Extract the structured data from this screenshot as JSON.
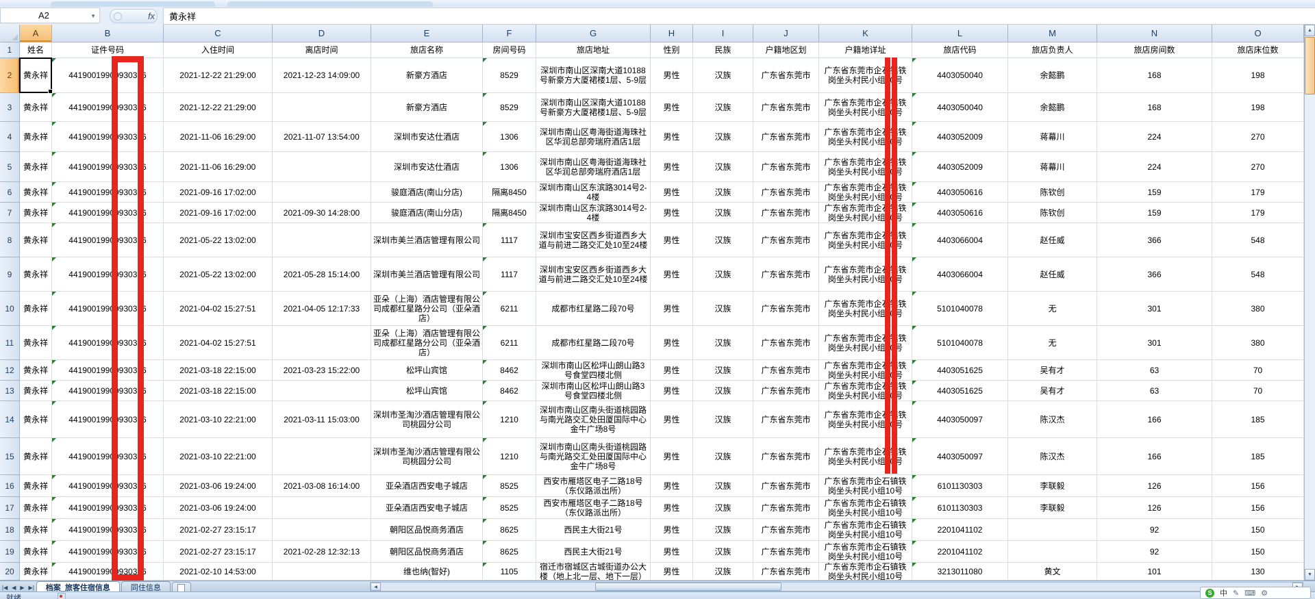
{
  "window": {
    "name_box": "A2",
    "formula_value": "黄永祥"
  },
  "icons": {
    "fx": "fx",
    "name_dropdown": "▼",
    "nav_first": "|◀",
    "nav_prev": "◀",
    "nav_next": "▶",
    "nav_last": "▶|",
    "scroll_up": "▲",
    "scroll_down": "▼",
    "scroll_left": "◀",
    "scroll_right": "▶",
    "ime_logo": "S",
    "ime_mode": "中",
    "ime_pen": "✎",
    "ime_keyboard": "⌨",
    "ime_settings": "⚙"
  },
  "sheet": {
    "header_row_number": "1",
    "selected_cell_ref": "A2",
    "columns": [
      {
        "letter": "A",
        "header": "姓名"
      },
      {
        "letter": "B",
        "header": "证件号码"
      },
      {
        "letter": "C",
        "header": "入住时间"
      },
      {
        "letter": "D",
        "header": "离店时间"
      },
      {
        "letter": "E",
        "header": "旅店名称"
      },
      {
        "letter": "F",
        "header": "房间号码"
      },
      {
        "letter": "G",
        "header": "旅店地址"
      },
      {
        "letter": "H",
        "header": "性别"
      },
      {
        "letter": "I",
        "header": "民族"
      },
      {
        "letter": "J",
        "header": "户籍地区划"
      },
      {
        "letter": "K",
        "header": "户籍地详址"
      },
      {
        "letter": "L",
        "header": "旅店代码"
      },
      {
        "letter": "M",
        "header": "旅店负责人"
      },
      {
        "letter": "N",
        "header": "旅店房间数"
      },
      {
        "letter": "O",
        "header": "旅店床位数"
      }
    ],
    "rows": [
      {
        "n": "2",
        "name": "黄永祥",
        "id_number": "44190019900930376",
        "check_in": "2021-12-22 21:29:00",
        "check_out": "2021-12-23 14:09:00",
        "hotel": "新豪方酒店",
        "room": "8529",
        "hotel_address": "深圳市南山区深南大道10188号新豪方大厦裙楼1层、5-9层",
        "gender": "男性",
        "ethnicity": "汉族",
        "region": "广东省东莞市",
        "home_address": "广东省东莞市企石镇铁岗坐头村民小组10号",
        "hotel_code": "4403050040",
        "manager": "余懿鹏",
        "room_count": "168",
        "bed_count": "198"
      },
      {
        "n": "3",
        "name": "黄永祥",
        "id_number": "44190019900930376",
        "check_in": "2021-12-22 21:29:00",
        "check_out": "",
        "hotel": "新豪方酒店",
        "room": "8529",
        "hotel_address": "深圳市南山区深南大道10188号新豪方大厦裙楼1层、5-9层",
        "gender": "男性",
        "ethnicity": "汉族",
        "region": "广东省东莞市",
        "home_address": "广东省东莞市企石镇铁岗坐头村民小组10号",
        "hotel_code": "4403050040",
        "manager": "余懿鹏",
        "room_count": "168",
        "bed_count": "198"
      },
      {
        "n": "4",
        "name": "黄永祥",
        "id_number": "44190019900930376",
        "check_in": "2021-11-06 16:29:00",
        "check_out": "2021-11-07 13:54:00",
        "hotel": "深圳市安达仕酒店",
        "room": "1306",
        "hotel_address": "深圳市南山区粤海街道海珠社区华润总部旁瑞府酒店1层",
        "gender": "男性",
        "ethnicity": "汉族",
        "region": "广东省东莞市",
        "home_address": "广东省东莞市企石镇铁岗坐头村民小组10号",
        "hotel_code": "4403052009",
        "manager": "蒋幕川",
        "room_count": "224",
        "bed_count": "270"
      },
      {
        "n": "5",
        "name": "黄永祥",
        "id_number": "44190019900930376",
        "check_in": "2021-11-06 16:29:00",
        "check_out": "",
        "hotel": "深圳市安达仕酒店",
        "room": "1306",
        "hotel_address": "深圳市南山区粤海街道海珠社区华润总部旁瑞府酒店1层",
        "gender": "男性",
        "ethnicity": "汉族",
        "region": "广东省东莞市",
        "home_address": "广东省东莞市企石镇铁岗坐头村民小组10号",
        "hotel_code": "4403052009",
        "manager": "蒋幕川",
        "room_count": "224",
        "bed_count": "270"
      },
      {
        "n": "6",
        "name": "黄永祥",
        "id_number": "44190019900930376",
        "check_in": "2021-09-16 17:02:00",
        "check_out": "",
        "hotel": "骏庭酒店(南山分店)",
        "room": "隔离8450",
        "hotel_address": "深圳市南山区东滨路3014号2-4楼",
        "gender": "男性",
        "ethnicity": "汉族",
        "region": "广东省东莞市",
        "home_address": "广东省东莞市企石镇铁岗坐头村民小组10号",
        "hotel_code": "4403050616",
        "manager": "陈钦创",
        "room_count": "159",
        "bed_count": "179"
      },
      {
        "n": "7",
        "name": "黄永祥",
        "id_number": "44190019900930376",
        "check_in": "2021-09-16 17:02:00",
        "check_out": "2021-09-30 14:28:00",
        "hotel": "骏庭酒店(南山分店)",
        "room": "隔离8450",
        "hotel_address": "深圳市南山区东滨路3014号2-4楼",
        "gender": "男性",
        "ethnicity": "汉族",
        "region": "广东省东莞市",
        "home_address": "广东省东莞市企石镇铁岗坐头村民小组10号",
        "hotel_code": "4403050616",
        "manager": "陈钦创",
        "room_count": "159",
        "bed_count": "179"
      },
      {
        "n": "8",
        "name": "黄永祥",
        "id_number": "44190019900930376",
        "check_in": "2021-05-22 13:02:00",
        "check_out": "",
        "hotel": "深圳市美兰酒店管理有限公司",
        "room": "1117",
        "hotel_address": "深圳市宝安区西乡街道西乡大道与前进二路交汇处10至24楼",
        "gender": "男性",
        "ethnicity": "汉族",
        "region": "广东省东莞市",
        "home_address": "广东省东莞市企石镇铁岗坐头村民小组10号",
        "hotel_code": "4403066004",
        "manager": "赵任威",
        "room_count": "366",
        "bed_count": "548"
      },
      {
        "n": "9",
        "name": "黄永祥",
        "id_number": "44190019900930376",
        "check_in": "2021-05-22 13:02:00",
        "check_out": "2021-05-28 15:14:00",
        "hotel": "深圳市美兰酒店管理有限公司",
        "room": "1117",
        "hotel_address": "深圳市宝安区西乡街道西乡大道与前进二路交汇处10至24楼",
        "gender": "男性",
        "ethnicity": "汉族",
        "region": "广东省东莞市",
        "home_address": "广东省东莞市企石镇铁岗坐头村民小组10号",
        "hotel_code": "4403066004",
        "manager": "赵任威",
        "room_count": "366",
        "bed_count": "548"
      },
      {
        "n": "10",
        "name": "黄永祥",
        "id_number": "44190019900930376",
        "check_in": "2021-04-02 15:27:51",
        "check_out": "2021-04-05 12:17:33",
        "hotel": "亚朵（上海）酒店管理有限公司成都红星路分公司（亚朵酒店）",
        "room": "6211",
        "hotel_address": "成都市红星路二段70号",
        "gender": "男性",
        "ethnicity": "汉族",
        "region": "广东省东莞市",
        "home_address": "广东省东莞市企石镇铁岗坐头村民小组10号",
        "hotel_code": "5101040078",
        "manager": "无",
        "room_count": "301",
        "bed_count": "380"
      },
      {
        "n": "11",
        "name": "黄永祥",
        "id_number": "44190019900930376",
        "check_in": "2021-04-02 15:27:51",
        "check_out": "",
        "hotel": "亚朵（上海）酒店管理有限公司成都红星路分公司（亚朵酒店）",
        "room": "6211",
        "hotel_address": "成都市红星路二段70号",
        "gender": "男性",
        "ethnicity": "汉族",
        "region": "广东省东莞市",
        "home_address": "广东省东莞市企石镇铁岗坐头村民小组10号",
        "hotel_code": "5101040078",
        "manager": "无",
        "room_count": "301",
        "bed_count": "380"
      },
      {
        "n": "12",
        "name": "黄永祥",
        "id_number": "44190019900930376",
        "check_in": "2021-03-18 22:15:00",
        "check_out": "2021-03-23 15:22:00",
        "hotel": "松坪山宾馆",
        "room": "8462",
        "hotel_address": "深圳市南山区松坪山朗山路3号食堂四楼北侧",
        "gender": "男性",
        "ethnicity": "汉族",
        "region": "广东省东莞市",
        "home_address": "广东省东莞市企石镇铁岗坐头村民小组10号",
        "hotel_code": "4403051625",
        "manager": "吴有才",
        "room_count": "63",
        "bed_count": "70"
      },
      {
        "n": "13",
        "name": "黄永祥",
        "id_number": "44190019900930376",
        "check_in": "2021-03-18 22:15:00",
        "check_out": "",
        "hotel": "松坪山宾馆",
        "room": "8462",
        "hotel_address": "深圳市南山区松坪山朗山路3号食堂四楼北侧",
        "gender": "男性",
        "ethnicity": "汉族",
        "region": "广东省东莞市",
        "home_address": "广东省东莞市企石镇铁岗坐头村民小组10号",
        "hotel_code": "4403051625",
        "manager": "吴有才",
        "room_count": "63",
        "bed_count": "70"
      },
      {
        "n": "14",
        "name": "黄永祥",
        "id_number": "44190019900930376",
        "check_in": "2021-03-10 22:21:00",
        "check_out": "2021-03-11 15:03:00",
        "hotel": "深圳市圣淘沙酒店管理有限公司桃园分公司",
        "room": "1210",
        "hotel_address": "深圳市南山区南头街道桃园路与南光路交汇处田厦国际中心金牛广场8号",
        "gender": "男性",
        "ethnicity": "汉族",
        "region": "广东省东莞市",
        "home_address": "广东省东莞市企石镇铁岗坐头村民小组10号",
        "hotel_code": "4403050097",
        "manager": "陈汉杰",
        "room_count": "166",
        "bed_count": "185"
      },
      {
        "n": "15",
        "name": "黄永祥",
        "id_number": "44190019900930376",
        "check_in": "2021-03-10 22:21:00",
        "check_out": "",
        "hotel": "深圳市圣淘沙酒店管理有限公司桃园分公司",
        "room": "1210",
        "hotel_address": "深圳市南山区南头街道桃园路与南光路交汇处田厦国际中心金牛广场8号",
        "gender": "男性",
        "ethnicity": "汉族",
        "region": "广东省东莞市",
        "home_address": "广东省东莞市企石镇铁岗坐头村民小组10号",
        "hotel_code": "4403050097",
        "manager": "陈汉杰",
        "room_count": "166",
        "bed_count": "185"
      },
      {
        "n": "16",
        "name": "黄永祥",
        "id_number": "44190019900930376",
        "check_in": "2021-03-06 19:24:00",
        "check_out": "2021-03-08 16:14:00",
        "hotel": "亚朵酒店西安电子城店",
        "room": "8525",
        "hotel_address": "西安市雁塔区电子二路18号（东仪路派出所）",
        "gender": "男性",
        "ethnicity": "汉族",
        "region": "广东省东莞市",
        "home_address": "广东省东莞市企石镇铁岗坐头村民小组10号",
        "hotel_code": "6101130303",
        "manager": "李联毅",
        "room_count": "126",
        "bed_count": "156"
      },
      {
        "n": "17",
        "name": "黄永祥",
        "id_number": "44190019900930376",
        "check_in": "2021-03-06 19:24:00",
        "check_out": "",
        "hotel": "亚朵酒店西安电子城店",
        "room": "8525",
        "hotel_address": "西安市雁塔区电子二路18号（东仪路派出所）",
        "gender": "男性",
        "ethnicity": "汉族",
        "region": "广东省东莞市",
        "home_address": "广东省东莞市企石镇铁岗坐头村民小组10号",
        "hotel_code": "6101130303",
        "manager": "李联毅",
        "room_count": "126",
        "bed_count": "156"
      },
      {
        "n": "18",
        "name": "黄永祥",
        "id_number": "44190019900930376",
        "check_in": "2021-02-27 23:15:17",
        "check_out": "",
        "hotel": "朝阳区品悦商务酒店",
        "room": "8625",
        "hotel_address": "西民主大街21号",
        "gender": "男性",
        "ethnicity": "汉族",
        "region": "广东省东莞市",
        "home_address": "广东省东莞市企石镇铁岗坐头村民小组10号",
        "hotel_code": "2201041102",
        "manager": "",
        "room_count": "92",
        "bed_count": "150"
      },
      {
        "n": "19",
        "name": "黄永祥",
        "id_number": "44190019900930376",
        "check_in": "2021-02-27 23:15:17",
        "check_out": "2021-02-28 12:32:13",
        "hotel": "朝阳区品悦商务酒店",
        "room": "8625",
        "hotel_address": "西民主大街21号",
        "gender": "男性",
        "ethnicity": "汉族",
        "region": "广东省东莞市",
        "home_address": "广东省东莞市企石镇铁岗坐头村民小组10号",
        "hotel_code": "2201041102",
        "manager": "",
        "room_count": "92",
        "bed_count": "150"
      },
      {
        "n": "20",
        "name": "黄永祥",
        "id_number": "44190019900930376",
        "check_in": "2021-02-10 14:53:00",
        "check_out": "",
        "hotel": "维也纳(智好)",
        "room": "1105",
        "hotel_address": "宿迁市宿城区古城街道办公大楼（地上北一层、地下一层）",
        "gender": "男性",
        "ethnicity": "汉族",
        "region": "广东省东莞市",
        "home_address": "广东省东莞市企石镇铁岗坐头村民小组10号",
        "hotel_code": "3213011080",
        "manager": "黄文",
        "room_count": "101",
        "bed_count": "130"
      }
    ]
  },
  "tabs": {
    "items": [
      {
        "label": "档案_旅客住宿信息",
        "active": true
      },
      {
        "label": "同住信息",
        "active": false
      }
    ]
  },
  "status_bar": {
    "ready": "就绪"
  },
  "annotations": [
    {
      "name": "red-box-id-column",
      "color": "#e8261d"
    },
    {
      "name": "red-bar-home-detail-column",
      "color": "#e8261d"
    }
  ]
}
